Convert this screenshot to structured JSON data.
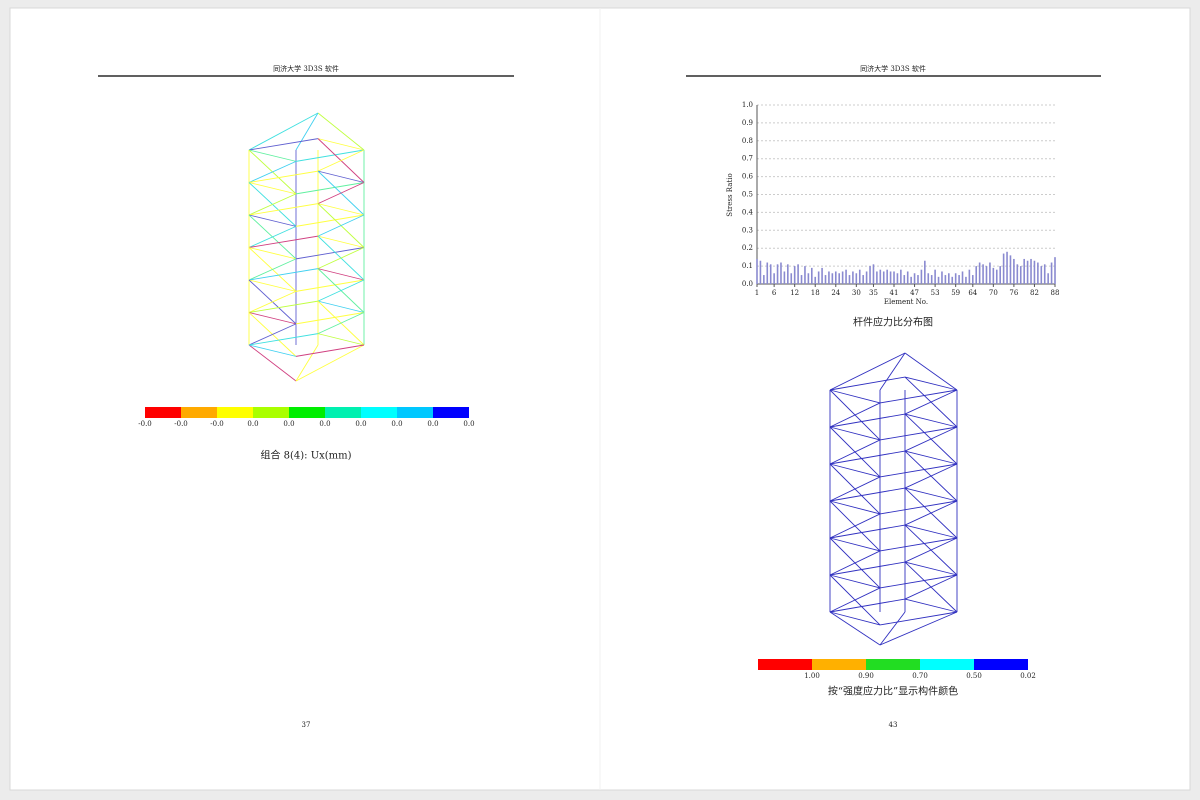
{
  "left_page": {
    "header": "同济大学 3D3S 软件",
    "legend": {
      "colors": [
        "#ff0000",
        "#ffaa00",
        "#ffff00",
        "#aaff00",
        "#00ee00",
        "#00f0b0",
        "#00ffff",
        "#00c8ff",
        "#0000ff"
      ],
      "labels": [
        "-0.0",
        "-0.0",
        "-0.0",
        "0.0",
        "0.0",
        "0.0",
        "0.0",
        "0.0",
        "0.0",
        "0.0"
      ]
    },
    "caption": "组合 8(4): Ux(mm)",
    "page_number": "37"
  },
  "right_page": {
    "header": "同济大学 3D3S 软件",
    "chart": {
      "type": "bar",
      "y_label": "Stress Ratio",
      "x_label": "Element No.",
      "color": "#8a8ad0",
      "grid": true,
      "x": [
        1,
        2,
        3,
        4,
        5,
        6,
        7,
        8,
        9,
        10,
        11,
        12,
        13,
        14,
        15,
        16,
        17,
        18,
        19,
        20,
        21,
        22,
        23,
        24,
        25,
        26,
        27,
        28,
        29,
        30,
        31,
        32,
        33,
        34,
        35,
        36,
        37,
        38,
        39,
        40,
        41,
        42,
        43,
        44,
        45,
        46,
        47,
        48,
        49,
        50,
        51,
        52,
        53,
        54,
        55,
        56,
        57,
        58,
        59,
        60,
        61,
        62,
        63,
        64,
        65,
        66,
        67,
        68,
        69,
        70,
        71,
        72,
        73,
        74,
        75,
        76,
        77,
        78,
        79,
        80,
        81,
        82,
        83,
        84,
        85,
        86,
        87,
        88
      ],
      "values": [
        0.14,
        0.13,
        0.05,
        0.12,
        0.11,
        0.06,
        0.11,
        0.12,
        0.07,
        0.11,
        0.06,
        0.1,
        0.11,
        0.05,
        0.1,
        0.06,
        0.09,
        0.04,
        0.07,
        0.09,
        0.05,
        0.07,
        0.06,
        0.07,
        0.06,
        0.07,
        0.08,
        0.05,
        0.07,
        0.06,
        0.08,
        0.05,
        0.07,
        0.1,
        0.11,
        0.07,
        0.08,
        0.07,
        0.08,
        0.07,
        0.07,
        0.06,
        0.08,
        0.05,
        0.07,
        0.04,
        0.06,
        0.05,
        0.08,
        0.13,
        0.06,
        0.05,
        0.08,
        0.04,
        0.07,
        0.05,
        0.06,
        0.04,
        0.06,
        0.05,
        0.07,
        0.04,
        0.08,
        0.05,
        0.1,
        0.12,
        0.11,
        0.1,
        0.12,
        0.09,
        0.08,
        0.1,
        0.17,
        0.18,
        0.16,
        0.14,
        0.11,
        0.1,
        0.14,
        0.13,
        0.14,
        0.13,
        0.12,
        0.1,
        0.11,
        0.06,
        0.12,
        0.15
      ],
      "xlim": [
        1,
        88
      ],
      "xticks": [
        1,
        6,
        12,
        18,
        24,
        30,
        35,
        41,
        47,
        53,
        59,
        64,
        70,
        76,
        82,
        88
      ],
      "ylim": [
        0,
        1
      ],
      "yticks": [
        {
          "value": 0,
          "label": "0.0"
        },
        0.1,
        0.2,
        0.3,
        0.4,
        0.5,
        0.6,
        0.7,
        0.8,
        0.9,
        {
          "value": 1,
          "label": "1.0"
        }
      ]
    },
    "caption": "杆件应力比分布图",
    "legend": {
      "colors": [
        "#ff0000",
        "#ffb000",
        "#22dd22",
        "#00ffff",
        "#0000ff"
      ],
      "labels": [
        "1.00",
        "0.90",
        "0.70",
        "0.50",
        "0.02"
      ]
    },
    "legend_caption": "按“强度应力比”显示构件颜色",
    "page_number": "43"
  }
}
